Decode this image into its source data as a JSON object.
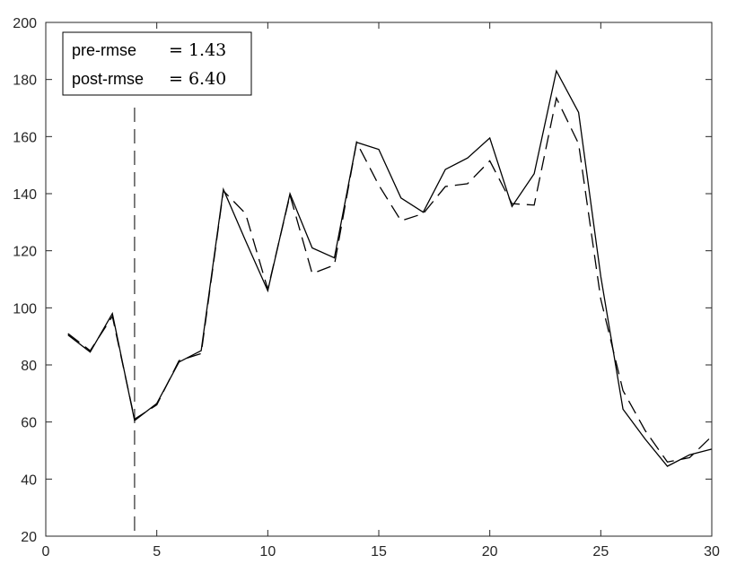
{
  "chart_data": {
    "type": "line",
    "xlim": [
      0,
      30
    ],
    "ylim": [
      20,
      200
    ],
    "xticks": [
      0,
      5,
      10,
      15,
      20,
      25,
      30
    ],
    "yticks": [
      20,
      40,
      60,
      80,
      100,
      120,
      140,
      160,
      180,
      200
    ],
    "grid": false,
    "legend_position": "top-left",
    "legend": {
      "rows": [
        {
          "label": "pre-rmse",
          "eq": "= 1.43"
        },
        {
          "label": "post-rmse",
          "eq": "= 6.40"
        }
      ]
    },
    "vline": {
      "x": 4,
      "style": "dashed"
    },
    "x": [
      1,
      2,
      3,
      4,
      5,
      6,
      7,
      8,
      9,
      10,
      11,
      12,
      13,
      14,
      15,
      16,
      17,
      18,
      19,
      20,
      21,
      22,
      23,
      24,
      25,
      26,
      27,
      28,
      29,
      30
    ],
    "series": [
      {
        "style": "solid",
        "color": "#000000",
        "values": [
          90.5,
          84.5,
          98,
          60.5,
          66.5,
          81,
          85,
          141.5,
          123.5,
          106,
          140,
          121,
          117.5,
          158,
          155.5,
          138.5,
          133.5,
          148.5,
          152.5,
          159.5,
          135.5,
          147,
          183,
          168.5,
          111,
          64.5,
          54,
          44.5,
          48.5,
          50.5
        ]
      },
      {
        "style": "dashed",
        "color": "#000000",
        "values": [
          91,
          85,
          97,
          61,
          66,
          81.5,
          84,
          141,
          133,
          106.5,
          139.5,
          112,
          115,
          158,
          143,
          130.5,
          133,
          142.5,
          143.5,
          151.5,
          136.5,
          136,
          173.5,
          157.5,
          103,
          71,
          57,
          46,
          47.5,
          55
        ]
      }
    ]
  }
}
